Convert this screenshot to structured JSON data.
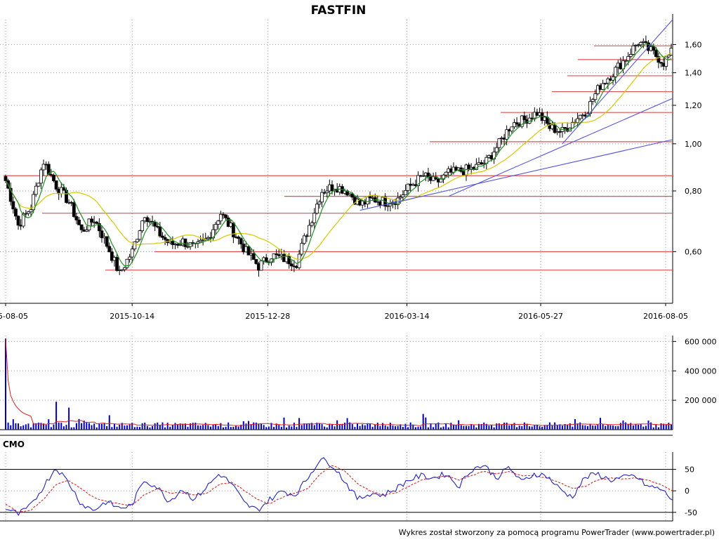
{
  "footer": "Wykres został stworzony za pomocą programu PowerTrader (www.powertrader.pl)",
  "colors": {
    "price": "#000000",
    "volume": "#0000cc",
    "volume_ma": "#e02020",
    "ma_short": "#1f8f1f",
    "ma_long": "#d8c800",
    "support_lines": "#e05050",
    "trend_lines": "#5555dd",
    "cmo": "#2222cc",
    "cmo_signal": "#e02020",
    "grid": "#999999"
  },
  "chart_data": [
    {
      "type": "candlestick",
      "title": "FASTFIN",
      "x_tick_labels": [
        "2015-08-05",
        "2015-10-14",
        "2015-12-28",
        "2016-03-14",
        "2016-05-27",
        "2016-08-05"
      ],
      "y_scale": "log",
      "y_tick_labels": [
        "0,60",
        "0,80",
        "1,00",
        "1,20",
        "1,40",
        "1,60"
      ],
      "y_ticks": [
        0.6,
        0.8,
        1.0,
        1.2,
        1.4,
        1.6
      ],
      "ylim": [
        0.47,
        1.8
      ],
      "close_series": [
        [
          "2015-08-05",
          0.84
        ],
        [
          "2015-08-12",
          0.68
        ],
        [
          "2015-08-19",
          0.74
        ],
        [
          "2015-08-26",
          0.92
        ],
        [
          "2015-09-02",
          0.82
        ],
        [
          "2015-09-09",
          0.76
        ],
        [
          "2015-09-16",
          0.66
        ],
        [
          "2015-09-23",
          0.7
        ],
        [
          "2015-09-30",
          0.62
        ],
        [
          "2015-10-07",
          0.54
        ],
        [
          "2015-10-14",
          0.6
        ],
        [
          "2015-10-21",
          0.72
        ],
        [
          "2015-10-28",
          0.66
        ],
        [
          "2015-11-04",
          0.62
        ],
        [
          "2015-11-11",
          0.63
        ],
        [
          "2015-11-18",
          0.61
        ],
        [
          "2015-11-25",
          0.64
        ],
        [
          "2015-12-02",
          0.72
        ],
        [
          "2015-12-09",
          0.66
        ],
        [
          "2015-12-16",
          0.6
        ],
        [
          "2015-12-23",
          0.56
        ],
        [
          "2015-12-30",
          0.59
        ],
        [
          "2016-01-06",
          0.58
        ],
        [
          "2016-01-13",
          0.57
        ],
        [
          "2016-01-20",
          0.68
        ],
        [
          "2016-01-27",
          0.8
        ],
        [
          "2016-02-03",
          0.82
        ],
        [
          "2016-02-10",
          0.8
        ],
        [
          "2016-02-17",
          0.75
        ],
        [
          "2016-02-24",
          0.77
        ],
        [
          "2016-03-02",
          0.76
        ],
        [
          "2016-03-09",
          0.77
        ],
        [
          "2016-03-16",
          0.82
        ],
        [
          "2016-03-23",
          0.86
        ],
        [
          "2016-03-30",
          0.83
        ],
        [
          "2016-04-06",
          0.87
        ],
        [
          "2016-04-13",
          0.88
        ],
        [
          "2016-04-20",
          0.89
        ],
        [
          "2016-04-27",
          0.92
        ],
        [
          "2016-05-04",
          1.0
        ],
        [
          "2016-05-11",
          1.1
        ],
        [
          "2016-05-18",
          1.12
        ],
        [
          "2016-05-25",
          1.16
        ],
        [
          "2016-06-01",
          1.08
        ],
        [
          "2016-06-08",
          1.06
        ],
        [
          "2016-06-15",
          1.12
        ],
        [
          "2016-06-22",
          1.18
        ],
        [
          "2016-06-29",
          1.32
        ],
        [
          "2016-07-06",
          1.4
        ],
        [
          "2016-07-13",
          1.5
        ],
        [
          "2016-07-20",
          1.62
        ],
        [
          "2016-07-27",
          1.55
        ],
        [
          "2016-08-03",
          1.47
        ],
        [
          "2016-08-08",
          1.55
        ]
      ],
      "horizontal_levels": [
        0.55,
        0.6,
        0.72,
        0.78,
        0.86,
        1.01,
        1.16,
        1.28,
        1.38,
        1.49,
        1.59
      ],
      "trend_lines": [
        {
          "from": [
            "2016-02-17",
            0.73
          ],
          "to": [
            "2016-08-08",
            1.02
          ]
        },
        {
          "from": [
            "2016-04-06",
            0.78
          ],
          "to": [
            "2016-08-08",
            1.24
          ]
        },
        {
          "from": [
            "2016-06-08",
            1.0
          ],
          "to": [
            "2016-08-08",
            1.8
          ]
        }
      ],
      "moving_averages": [
        "short",
        "long"
      ]
    },
    {
      "type": "bar",
      "name": "volume",
      "y_tick_labels": [
        "200 000",
        "400 000",
        "600 000"
      ],
      "y_ticks": [
        200000,
        400000,
        600000
      ],
      "ylim": [
        0,
        640000
      ],
      "peak": 620000,
      "notable": [
        [
          "2015-08-05",
          620000
        ],
        [
          "2015-09-02",
          190000
        ],
        [
          "2015-09-09",
          150000
        ]
      ]
    },
    {
      "type": "line",
      "title": "CMO",
      "y_tick_labels": [
        "50",
        "0",
        "-50"
      ],
      "y_ticks": [
        50,
        0,
        -50
      ],
      "ylim": [
        -70,
        90
      ],
      "series": [
        {
          "values": [
            -40,
            -55,
            -35,
            10,
            55,
            20,
            -30,
            -45,
            -25,
            -40,
            -35,
            25,
            10,
            -25,
            5,
            -20,
            10,
            40,
            15,
            -30,
            -45,
            -20,
            0,
            -10,
            30,
            75,
            60,
            20,
            -20,
            -5,
            -10,
            5,
            25,
            35,
            30,
            40,
            10,
            50,
            60,
            30,
            55,
            20,
            40,
            35,
            5,
            -15,
            30,
            40,
            25,
            30,
            35,
            10,
            5,
            -20
          ]
        },
        {
          "values": [
            -30,
            -50,
            -45,
            -20,
            15,
            25,
            5,
            -15,
            -25,
            -30,
            -35,
            -10,
            5,
            -5,
            -5,
            -10,
            -5,
            15,
            20,
            0,
            -20,
            -30,
            -15,
            -5,
            5,
            40,
            60,
            45,
            15,
            0,
            -10,
            -5,
            10,
            25,
            30,
            35,
            25,
            35,
            45,
            40,
            45,
            35,
            35,
            30,
            20,
            5,
            10,
            25,
            30,
            28,
            30,
            25,
            15,
            0
          ]
        }
      ]
    }
  ]
}
